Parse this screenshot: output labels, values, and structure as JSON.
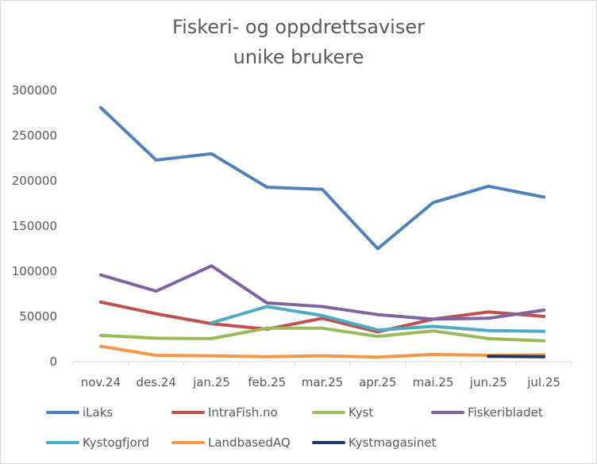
{
  "chart_data": {
    "type": "line",
    "title_lines": [
      "Fiskeri- og oppdrettsaviser",
      "unike brukere"
    ],
    "xlabel": "",
    "ylabel": "",
    "categories": [
      "nov.24",
      "des.24",
      "jan.25",
      "feb.25",
      "mar.25",
      "apr.25",
      "mai.25",
      "jun.25",
      "jul.25"
    ],
    "ylim": [
      0,
      300000
    ],
    "yticks": [
      0,
      50000,
      100000,
      150000,
      200000,
      250000,
      300000
    ],
    "grid": false,
    "legend_position": "bottom",
    "series": [
      {
        "name": "iLaks",
        "color": "#4f81bd",
        "values": [
          281000,
          223000,
          230000,
          193000,
          190500,
          125000,
          176000,
          194000,
          182000
        ]
      },
      {
        "name": "IntraFish.no",
        "color": "#c0504d",
        "values": [
          66000,
          53000,
          42000,
          36000,
          48000,
          33000,
          47000,
          55000,
          50000
        ]
      },
      {
        "name": "Kyst",
        "color": "#9bbb59",
        "values": [
          29000,
          26000,
          25500,
          37000,
          37000,
          28000,
          34000,
          25500,
          23000
        ]
      },
      {
        "name": "Fiskeribladet",
        "color": "#8064a2",
        "values": [
          96000,
          78000,
          106000,
          65000,
          61000,
          52000,
          47000,
          48000,
          57000
        ]
      },
      {
        "name": "Kystogfjord",
        "color": "#4bacc6",
        "values": [
          null,
          null,
          43000,
          61000,
          51000,
          35000,
          39000,
          34500,
          33500
        ]
      },
      {
        "name": "LandbasedAQ",
        "color": "#f79646",
        "values": [
          17000,
          7000,
          6500,
          5500,
          6500,
          5000,
          8000,
          7000,
          7500
        ]
      },
      {
        "name": "Kystmagasinet",
        "color": "#1f3864",
        "values": [
          null,
          null,
          null,
          null,
          null,
          null,
          null,
          6000,
          5500
        ]
      }
    ]
  }
}
